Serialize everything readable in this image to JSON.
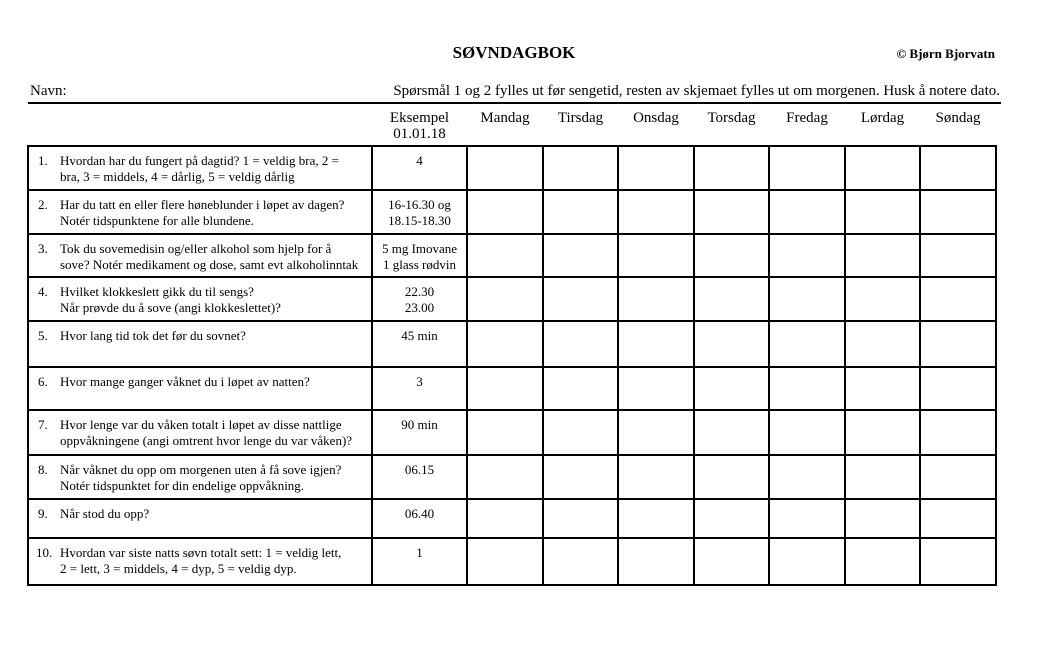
{
  "header": {
    "title": "SØVNDAGBOK",
    "copyright": "© Bjørn Bjorvatn",
    "name_label": "Navn:",
    "instruction": "Spørsmål 1 og 2 fylles ut før sengetid, resten av skjemaet fylles ut om morgenen. Husk å notere dato."
  },
  "table": {
    "example_header": [
      "Eksempel",
      "01.01.18"
    ],
    "days": [
      "Mandag",
      "Tirsdag",
      "Onsdag",
      "Torsdag",
      "Fredag",
      "Lørdag",
      "Søndag"
    ],
    "rows": [
      {
        "number": "1.",
        "question": [
          "Hvordan har du fungert på dagtid? 1 = veldig bra, 2 =",
          "bra, 3 = middels, 4 = dårlig, 5 = veldig dårlig"
        ],
        "example": [
          "4"
        ]
      },
      {
        "number": "2.",
        "question": [
          "Har du tatt en eller flere høneblunder i løpet av dagen?",
          "Notér tidspunktene for alle blundene."
        ],
        "example": [
          "16-16.30 og",
          "18.15-18.30"
        ]
      },
      {
        "number": "3.",
        "question": [
          "Tok du sovemedisin og/eller alkohol som hjelp for å",
          "sove? Notér medikament og dose, samt evt alkoholinntak"
        ],
        "example": [
          "5 mg Imovane",
          "1 glass rødvin"
        ]
      },
      {
        "number": "4.",
        "question": [
          "Hvilket klokkeslett gikk du til sengs?",
          "Når prøvde du å sove (angi klokkeslettet)?"
        ],
        "example": [
          "22.30",
          "23.00"
        ]
      },
      {
        "number": "5.",
        "question": [
          "Hvor lang tid tok det før du sovnet?"
        ],
        "example": [
          "45 min"
        ]
      },
      {
        "number": "6.",
        "question": [
          "Hvor mange ganger våknet du i løpet av natten?"
        ],
        "example": [
          "3"
        ]
      },
      {
        "number": "7.",
        "question": [
          "Hvor lenge var du våken totalt i løpet av disse nattlige",
          "oppvåkningene (angi omtrent hvor lenge du var våken)?"
        ],
        "example": [
          "90 min"
        ]
      },
      {
        "number": "8.",
        "question": [
          "Når våknet du opp om morgenen uten å få sove igjen?",
          "Notér tidspunktet for din endelige oppvåkning."
        ],
        "example": [
          "06.15"
        ]
      },
      {
        "number": "9.",
        "question": [
          "Når stod du opp?"
        ],
        "example": [
          "06.40"
        ]
      },
      {
        "number": "10.",
        "question": [
          "Hvordan var siste natts søvn totalt sett: 1 = veldig lett,",
          "2 = lett, 3 = middels, 4 = dyp, 5 = veldig dyp."
        ],
        "example": [
          "1"
        ]
      }
    ]
  }
}
